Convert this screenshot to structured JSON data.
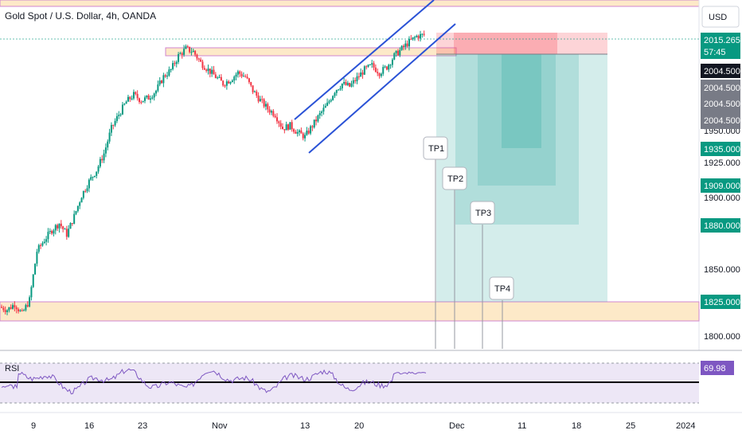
{
  "header": {
    "title": "Gold Spot / U.S. Dollar, 4h, OANDA",
    "currency": "USD"
  },
  "colors": {
    "up": "#089981",
    "down": "#f23645",
    "zone_fill": "#fde9c8",
    "zone_border": "#d086d0",
    "channel": "#2a52d6",
    "target_fill": "#26a69a",
    "stop_fill": "#f7525f",
    "tag_green": "#089981",
    "tag_gray": "#787b86",
    "tag_dark": "#131722",
    "rsi_line": "#7e57c2",
    "rsi_bg": "#ede7f6"
  },
  "chart_data": {
    "type": "candlestick",
    "ylim": [
      1790,
      2040
    ],
    "y_ticks": [
      "1800.000",
      "1850.000",
      "1900.000",
      "1925.000",
      "1950.000"
    ],
    "x_ticks": [
      "9",
      "16",
      "23",
      "Nov",
      "13",
      "20",
      "Dec",
      "11",
      "18",
      "25",
      "2024"
    ],
    "last_price": "2015.265",
    "countdown": "57:45",
    "entry_labels": [
      "2004.500",
      "2004.500",
      "2004.500",
      "2004.500"
    ],
    "take_profits": [
      {
        "label": "TP1",
        "price": 1935,
        "tag": "1935.000"
      },
      {
        "label": "TP2",
        "price": 1909,
        "tag": "1909.000"
      },
      {
        "label": "TP3",
        "price": 1880,
        "tag": "1880.000"
      },
      {
        "label": "TP4",
        "price": 1825,
        "tag": "1825.000"
      }
    ],
    "entry": 2004.5,
    "stop": 2017,
    "resistance_zone": [
      2004.5,
      2009
    ],
    "support_zone": [
      1808,
      1825
    ],
    "rsi": {
      "label": "RSI",
      "value": "69.98",
      "upper": 70,
      "lower": 30,
      "mid": 50
    },
    "close_path": [
      1820,
      1818,
      1822,
      1815,
      1825,
      1860,
      1868,
      1875,
      1880,
      1872,
      1885,
      1900,
      1910,
      1918,
      1930,
      1948,
      1958,
      1967,
      1972,
      1968,
      1970,
      1975,
      1985,
      1990,
      2000,
      2005,
      2003,
      1995,
      1990,
      1985,
      1980,
      1983,
      1988,
      1985,
      1975,
      1968,
      1962,
      1958,
      1948,
      1950,
      1945,
      1942,
      1950,
      1958,
      1965,
      1975,
      1980,
      1978,
      1984,
      1990,
      1993,
      1988,
      1992,
      2000,
      2005,
      2010,
      2014,
      2015
    ]
  }
}
